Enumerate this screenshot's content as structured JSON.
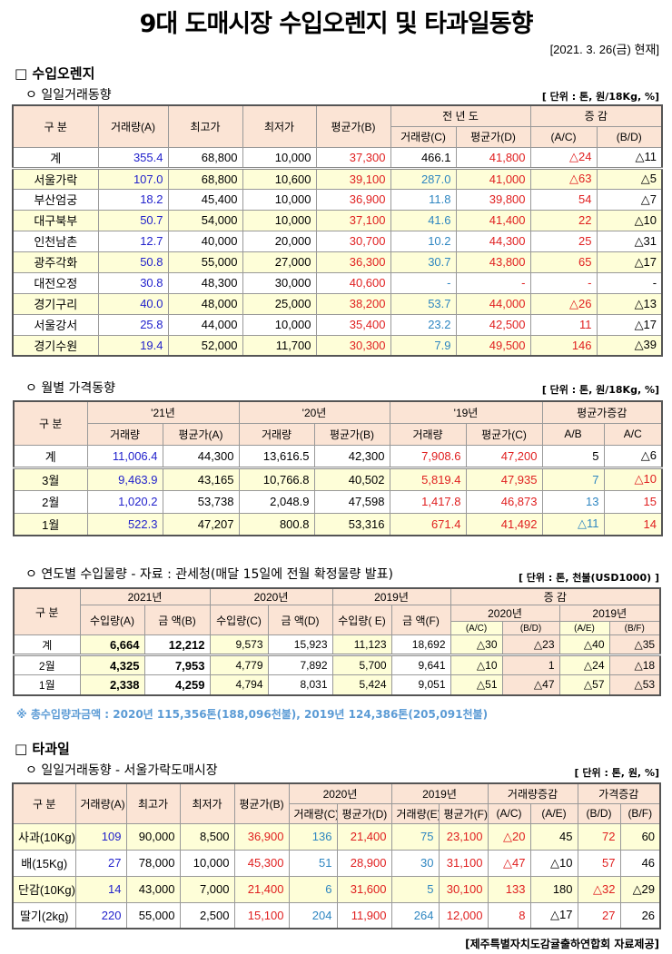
{
  "title": "9대 도매시장 수입오렌지 및 타과일동향",
  "date": "[2021. 3. 26(금) 현재]",
  "section1": {
    "heading": "□ 수입오렌지"
  },
  "daily": {
    "subheading": "ㅇ 일일거래동향",
    "unit": "[ 단위 : 톤, 원/18Kg, %]",
    "headers": {
      "gubun": "구      분",
      "vol": "거래량(A)",
      "max": "최고가",
      "min": "최저가",
      "avg": "평균가(B)",
      "prev": "전 년 도",
      "prev_vol": "거래량(C)",
      "prev_avg": "평균가(D)",
      "chg": "증   감",
      "ac": "(A/C)",
      "bd": "(B/D)"
    },
    "rows": [
      {
        "label": "계",
        "total": true,
        "cells": [
          {
            "v": "355.4",
            "c": "blue"
          },
          {
            "v": "68,800",
            "c": "black"
          },
          {
            "v": "10,000",
            "c": "black"
          },
          {
            "v": "37,300",
            "c": "red"
          },
          {
            "v": "466.1",
            "c": "black"
          },
          {
            "v": "41,800",
            "c": "red"
          },
          {
            "v": "△24",
            "c": "red"
          },
          {
            "v": "△11",
            "c": "black"
          }
        ]
      },
      {
        "label": "서울가락",
        "yellow": true,
        "cells": [
          {
            "v": "107.0",
            "c": "blue"
          },
          {
            "v": "68,800",
            "c": "black"
          },
          {
            "v": "10,600",
            "c": "black"
          },
          {
            "v": "39,100",
            "c": "red"
          },
          {
            "v": "287.0",
            "c": "teal"
          },
          {
            "v": "41,000",
            "c": "red"
          },
          {
            "v": "△63",
            "c": "red"
          },
          {
            "v": "△5",
            "c": "black"
          }
        ]
      },
      {
        "label": "부산엄궁",
        "cells": [
          {
            "v": "18.2",
            "c": "blue"
          },
          {
            "v": "45,400",
            "c": "black"
          },
          {
            "v": "10,000",
            "c": "black"
          },
          {
            "v": "36,900",
            "c": "red"
          },
          {
            "v": "11.8",
            "c": "teal"
          },
          {
            "v": "39,800",
            "c": "red"
          },
          {
            "v": "54",
            "c": "red"
          },
          {
            "v": "△7",
            "c": "black"
          }
        ]
      },
      {
        "label": "대구북부",
        "yellow": true,
        "cells": [
          {
            "v": "50.7",
            "c": "blue"
          },
          {
            "v": "54,000",
            "c": "black"
          },
          {
            "v": "10,000",
            "c": "black"
          },
          {
            "v": "37,100",
            "c": "red"
          },
          {
            "v": "41.6",
            "c": "teal"
          },
          {
            "v": "41,400",
            "c": "red"
          },
          {
            "v": "22",
            "c": "red"
          },
          {
            "v": "△10",
            "c": "black"
          }
        ]
      },
      {
        "label": "인천남촌",
        "cells": [
          {
            "v": "12.7",
            "c": "blue"
          },
          {
            "v": "40,000",
            "c": "black"
          },
          {
            "v": "20,000",
            "c": "black"
          },
          {
            "v": "30,700",
            "c": "red"
          },
          {
            "v": "10.2",
            "c": "teal"
          },
          {
            "v": "44,300",
            "c": "red"
          },
          {
            "v": "25",
            "c": "red"
          },
          {
            "v": "△31",
            "c": "black"
          }
        ]
      },
      {
        "label": "광주각화",
        "yellow": true,
        "cells": [
          {
            "v": "50.8",
            "c": "blue"
          },
          {
            "v": "55,000",
            "c": "black"
          },
          {
            "v": "27,000",
            "c": "black"
          },
          {
            "v": "36,300",
            "c": "red"
          },
          {
            "v": "30.7",
            "c": "teal"
          },
          {
            "v": "43,800",
            "c": "red"
          },
          {
            "v": "65",
            "c": "red"
          },
          {
            "v": "△17",
            "c": "black"
          }
        ]
      },
      {
        "label": "대전오정",
        "cells": [
          {
            "v": "30.8",
            "c": "blue"
          },
          {
            "v": "48,300",
            "c": "black"
          },
          {
            "v": "30,000",
            "c": "black"
          },
          {
            "v": "40,600",
            "c": "red"
          },
          {
            "v": "-",
            "c": "teal"
          },
          {
            "v": "-",
            "c": "red"
          },
          {
            "v": "-",
            "c": "red"
          },
          {
            "v": "-",
            "c": "black"
          }
        ]
      },
      {
        "label": "경기구리",
        "yellow": true,
        "cells": [
          {
            "v": "40.0",
            "c": "blue"
          },
          {
            "v": "48,000",
            "c": "black"
          },
          {
            "v": "25,000",
            "c": "black"
          },
          {
            "v": "38,200",
            "c": "red"
          },
          {
            "v": "53.7",
            "c": "teal"
          },
          {
            "v": "44,000",
            "c": "red"
          },
          {
            "v": "△26",
            "c": "red"
          },
          {
            "v": "△13",
            "c": "black"
          }
        ]
      },
      {
        "label": "서울강서",
        "cells": [
          {
            "v": "25.8",
            "c": "blue"
          },
          {
            "v": "44,000",
            "c": "black"
          },
          {
            "v": "10,000",
            "c": "black"
          },
          {
            "v": "35,400",
            "c": "red"
          },
          {
            "v": "23.2",
            "c": "teal"
          },
          {
            "v": "42,500",
            "c": "red"
          },
          {
            "v": "11",
            "c": "red"
          },
          {
            "v": "△17",
            "c": "black"
          }
        ]
      },
      {
        "label": "경기수원",
        "yellow": true,
        "cells": [
          {
            "v": "19.4",
            "c": "blue"
          },
          {
            "v": "52,000",
            "c": "black"
          },
          {
            "v": "11,700",
            "c": "black"
          },
          {
            "v": "30,300",
            "c": "red"
          },
          {
            "v": "7.9",
            "c": "teal"
          },
          {
            "v": "49,500",
            "c": "red"
          },
          {
            "v": "146",
            "c": "red"
          },
          {
            "v": "△39",
            "c": "black"
          }
        ]
      }
    ]
  },
  "monthly": {
    "subheading": "ㅇ 월별 가격동향",
    "unit": "[ 단위 : 톤, 원/18Kg, %]",
    "headers": {
      "gubun": "구      분",
      "y21": "'21년",
      "y20": "'20년",
      "y19": "'19년",
      "chg": "평균가증감",
      "vol": "거래량",
      "avgA": "평균가(A)",
      "avgB": "평균가(B)",
      "avgC": "평균가(C)",
      "ab": "A/B",
      "ac": "A/C"
    },
    "rows": [
      {
        "label": "계",
        "total": true,
        "cells": [
          {
            "v": "11,006.4",
            "c": "blue"
          },
          {
            "v": "44,300",
            "c": "black"
          },
          {
            "v": "13,616.5",
            "c": "black"
          },
          {
            "v": "42,300",
            "c": "black"
          },
          {
            "v": "7,908.6",
            "c": "red"
          },
          {
            "v": "47,200",
            "c": "red"
          },
          {
            "v": "5",
            "c": "black"
          },
          {
            "v": "△6",
            "c": "black"
          }
        ]
      },
      {
        "label": "3월",
        "yellow": true,
        "cells": [
          {
            "v": "9,463.9",
            "c": "blue"
          },
          {
            "v": "43,165",
            "c": "black"
          },
          {
            "v": "10,766.8",
            "c": "black"
          },
          {
            "v": "40,502",
            "c": "black"
          },
          {
            "v": "5,819.4",
            "c": "red"
          },
          {
            "v": "47,935",
            "c": "red"
          },
          {
            "v": "7",
            "c": "teal"
          },
          {
            "v": "△10",
            "c": "red"
          }
        ]
      },
      {
        "label": "2월",
        "cells": [
          {
            "v": "1,020.2",
            "c": "blue"
          },
          {
            "v": "53,738",
            "c": "black"
          },
          {
            "v": "2,048.9",
            "c": "black"
          },
          {
            "v": "47,598",
            "c": "black"
          },
          {
            "v": "1,417.8",
            "c": "red"
          },
          {
            "v": "46,873",
            "c": "red"
          },
          {
            "v": "13",
            "c": "teal"
          },
          {
            "v": "15",
            "c": "red"
          }
        ]
      },
      {
        "label": "1월",
        "yellow": true,
        "cells": [
          {
            "v": "522.3",
            "c": "blue"
          },
          {
            "v": "47,207",
            "c": "black"
          },
          {
            "v": "800.8",
            "c": "black"
          },
          {
            "v": "53,316",
            "c": "black"
          },
          {
            "v": "671.4",
            "c": "red"
          },
          {
            "v": "41,492",
            "c": "red"
          },
          {
            "v": "△11",
            "c": "teal"
          },
          {
            "v": "14",
            "c": "red"
          }
        ]
      }
    ]
  },
  "annual": {
    "subheading": "ㅇ 연도별 수입물량 - 자료 : 관세청(매달 15일에 전월 확정물량 발표)",
    "unit": "[ 단위 : 톤, 천불(USD1000) ]",
    "headers": {
      "gubun": "구 분",
      "y2021": "2021년",
      "y2020": "2020년",
      "y2019": "2019년",
      "chg": "증    감",
      "c2020": "2020년",
      "c2019": "2019년",
      "volA": "수입량(A)",
      "amtB": "금  액(B)",
      "volC": "수입량(C)",
      "amtD": "금  액(D)",
      "volE": "수입량( E)",
      "amtF": "금  액(F)",
      "ac": "(A/C)",
      "bd": "(B/D)",
      "ae": "(A/E)",
      "bf": "(B/F)"
    },
    "rows": [
      {
        "label": "계",
        "total": true,
        "cells": [
          "6,664",
          "12,212",
          "9,573",
          "15,923",
          "11,123",
          "18,692",
          "△30",
          "△23",
          "△40",
          "△35"
        ]
      },
      {
        "label": "2월",
        "cells": [
          "4,325",
          "7,953",
          "4,779",
          "7,892",
          "5,700",
          "9,641",
          "△10",
          "1",
          "△24",
          "△18"
        ]
      },
      {
        "label": "1월",
        "cells": [
          "2,338",
          "4,259",
          "4,794",
          "8,031",
          "5,424",
          "9,051",
          "△51",
          "△47",
          "△57",
          "△53"
        ]
      }
    ],
    "note": "※ 총수입량과금액 : 2020년 115,356톤(188,096천불),  2019년 124,386톤(205,091천불)"
  },
  "section2": {
    "heading": "□ 타과일"
  },
  "other": {
    "subheading": "ㅇ 일일거래동향 - 서울가락도매시장",
    "unit": "[ 단위 : 톤, 원, %]",
    "headers": {
      "gubun": "구  분",
      "vol": "거래량(A)",
      "max": "최고가",
      "min": "최저가",
      "avg": "평균가(B)",
      "y2020": "2020년",
      "y2019": "2019년",
      "volchg": "거래량증감",
      "pricechg": "가격증감",
      "volC": "거래량(C)",
      "avgD": "평균가(D)",
      "volE": "거래량(E)",
      "avgF": "평균가(F)",
      "ac": "(A/C)",
      "ae": "(A/E)",
      "bd": "(B/D)",
      "bf": "(B/F)"
    },
    "rows": [
      {
        "label": "사과(10Kg)",
        "yellow": true,
        "cells": [
          {
            "v": "109",
            "c": "blue"
          },
          {
            "v": "90,000",
            "c": "black"
          },
          {
            "v": "8,500",
            "c": "black"
          },
          {
            "v": "36,900",
            "c": "red"
          },
          {
            "v": "136",
            "c": "teal"
          },
          {
            "v": "21,400",
            "c": "red"
          },
          {
            "v": "75",
            "c": "teal"
          },
          {
            "v": "23,100",
            "c": "red"
          },
          {
            "v": "△20",
            "c": "red"
          },
          {
            "v": "45",
            "c": "black"
          },
          {
            "v": "72",
            "c": "red"
          },
          {
            "v": "60",
            "c": "black"
          }
        ]
      },
      {
        "label": "배(15Kg)",
        "cells": [
          {
            "v": "27",
            "c": "blue"
          },
          {
            "v": "78,000",
            "c": "black"
          },
          {
            "v": "10,000",
            "c": "black"
          },
          {
            "v": "45,300",
            "c": "red"
          },
          {
            "v": "51",
            "c": "teal"
          },
          {
            "v": "28,900",
            "c": "red"
          },
          {
            "v": "30",
            "c": "teal"
          },
          {
            "v": "31,100",
            "c": "red"
          },
          {
            "v": "△47",
            "c": "red"
          },
          {
            "v": "△10",
            "c": "black"
          },
          {
            "v": "57",
            "c": "red"
          },
          {
            "v": "46",
            "c": "black"
          }
        ]
      },
      {
        "label": "단감(10Kg)",
        "yellow": true,
        "cells": [
          {
            "v": "14",
            "c": "blue"
          },
          {
            "v": "43,000",
            "c": "black"
          },
          {
            "v": "7,000",
            "c": "black"
          },
          {
            "v": "21,400",
            "c": "red"
          },
          {
            "v": "6",
            "c": "teal"
          },
          {
            "v": "31,600",
            "c": "red"
          },
          {
            "v": "5",
            "c": "teal"
          },
          {
            "v": "30,100",
            "c": "red"
          },
          {
            "v": "133",
            "c": "red"
          },
          {
            "v": "180",
            "c": "black"
          },
          {
            "v": "△32",
            "c": "red"
          },
          {
            "v": "△29",
            "c": "black"
          }
        ]
      },
      {
        "label": "딸기(2kg)",
        "cells": [
          {
            "v": "220",
            "c": "blue"
          },
          {
            "v": "55,000",
            "c": "black"
          },
          {
            "v": "2,500",
            "c": "black"
          },
          {
            "v": "15,100",
            "c": "red"
          },
          {
            "v": "204",
            "c": "teal"
          },
          {
            "v": "11,900",
            "c": "red"
          },
          {
            "v": "264",
            "c": "teal"
          },
          {
            "v": "12,000",
            "c": "red"
          },
          {
            "v": "8",
            "c": "red"
          },
          {
            "v": "△17",
            "c": "black"
          },
          {
            "v": "27",
            "c": "red"
          },
          {
            "v": "26",
            "c": "black"
          }
        ]
      }
    ],
    "footer": "[제주특별자치도감귤출하연합회 자료제공]"
  }
}
